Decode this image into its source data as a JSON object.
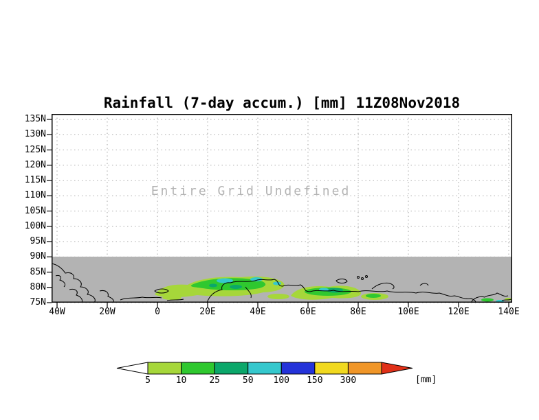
{
  "chart_data": {
    "type": "heatmap",
    "title": "Rainfall (7-day accum.) [mm] 11Z08Nov2018",
    "annotation": "Entire Grid Undefined",
    "x_ticks": [
      "40W",
      "20W",
      "0",
      "20E",
      "40E",
      "60E",
      "80E",
      "100E",
      "120E",
      "140E"
    ],
    "y_ticks": [
      "135N",
      "130N",
      "125N",
      "120N",
      "115N",
      "110N",
      "105N",
      "100N",
      "95N",
      "90N",
      "85N",
      "80N",
      "75N"
    ],
    "x_range_deg_lon": [
      -40,
      140
    ],
    "y_range_deg_lat": [
      75,
      137
    ],
    "grid": "dotted",
    "legend": {
      "position": "bottom",
      "unit_label": "[mm]",
      "levels_mm": [
        5,
        10,
        25,
        50,
        100,
        150,
        300
      ],
      "colors": [
        "#ffffff",
        "#a6d73a",
        "#2fc82f",
        "#0ba76a",
        "#35c8cd",
        "#2433d9",
        "#f1d91f",
        "#f09628",
        "#e03018"
      ],
      "color_ranges_mm": [
        "<5",
        "5-10",
        "10-25",
        "25-50",
        "50-100",
        "100-150",
        "150-300",
        ">300",
        "arrow-high"
      ]
    },
    "undefined_region": {
      "extent": "band between 90N and 75N shown in gray; rest of grid undefined (white)",
      "color": "#b3b3b3"
    },
    "visible_rainfall_features": [
      {
        "region": "approx 5W-45E, 76N-84N",
        "approx_values_mm": "5-100 (yellow-green, green, cyan patches)"
      },
      {
        "region": "approx 50E-80E, 75N-80N",
        "approx_values_mm": "5-50 (green patches)"
      },
      {
        "region": "approx 130E-140E, 75N-76N",
        "approx_values_mm": "5-25 (small patches)"
      }
    ]
  }
}
